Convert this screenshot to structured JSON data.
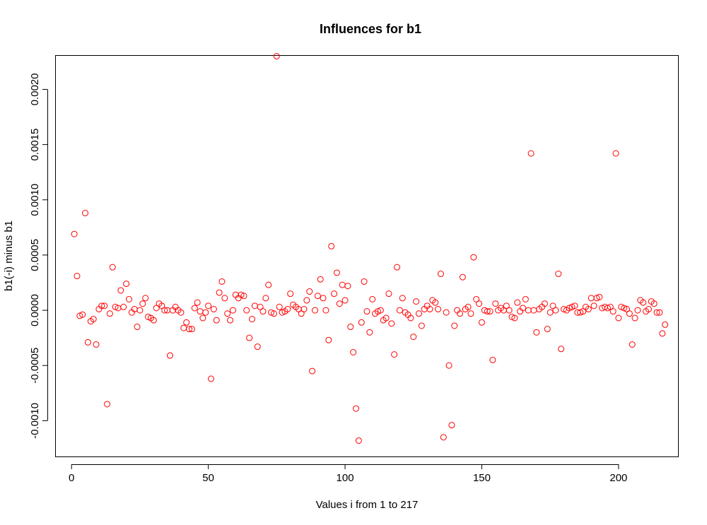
{
  "chart_data": {
    "type": "scatter",
    "title": "Influences for b1",
    "xlabel": "Values i from 1 to 217",
    "ylabel": "b1(-i) minus b1",
    "xlim": [
      -6,
      222
    ],
    "ylim": [
      -0.00133,
      0.00231
    ],
    "xticks": [
      0,
      50,
      100,
      150,
      200
    ],
    "xtick_labels": [
      "0",
      "50",
      "100",
      "150",
      "200"
    ],
    "yticks": [
      -0.001,
      -0.0005,
      0.0,
      0.0005,
      0.001,
      0.0015,
      0.002
    ],
    "ytick_labels": [
      "-0.0010",
      "-0.0005",
      "0.0000",
      "0.0005",
      "0.0010",
      "0.0015",
      "0.0020"
    ],
    "grid": false,
    "marker": "open-circle",
    "colors": {
      "points": "#ff0000",
      "axes": "#000000",
      "background": "#ffffff"
    },
    "x": [
      1,
      2,
      3,
      4,
      5,
      6,
      7,
      8,
      9,
      10,
      11,
      12,
      13,
      14,
      15,
      16,
      17,
      18,
      19,
      20,
      21,
      22,
      23,
      24,
      25,
      26,
      27,
      28,
      29,
      30,
      31,
      32,
      33,
      34,
      35,
      36,
      37,
      38,
      39,
      40,
      41,
      42,
      43,
      44,
      45,
      46,
      47,
      48,
      49,
      50,
      51,
      52,
      53,
      54,
      55,
      56,
      57,
      58,
      59,
      60,
      61,
      62,
      63,
      64,
      65,
      66,
      67,
      68,
      69,
      70,
      71,
      72,
      73,
      74,
      75,
      76,
      77,
      78,
      79,
      80,
      81,
      82,
      83,
      84,
      85,
      86,
      87,
      88,
      89,
      90,
      91,
      92,
      93,
      94,
      95,
      96,
      97,
      98,
      99,
      100,
      101,
      102,
      103,
      104,
      105,
      106,
      107,
      108,
      109,
      110,
      111,
      112,
      113,
      114,
      115,
      116,
      117,
      118,
      119,
      120,
      121,
      122,
      123,
      124,
      125,
      126,
      127,
      128,
      129,
      130,
      131,
      132,
      133,
      134,
      135,
      136,
      137,
      138,
      139,
      140,
      141,
      142,
      143,
      144,
      145,
      146,
      147,
      148,
      149,
      150,
      151,
      152,
      153,
      154,
      155,
      156,
      157,
      158,
      159,
      160,
      161,
      162,
      163,
      164,
      165,
      166,
      167,
      168,
      169,
      170,
      171,
      172,
      173,
      174,
      175,
      176,
      177,
      178,
      179,
      180,
      181,
      182,
      183,
      184,
      185,
      186,
      187,
      188,
      189,
      190,
      191,
      192,
      193,
      194,
      195,
      196,
      197,
      198,
      199,
      200,
      201,
      202,
      203,
      204,
      205,
      206,
      207,
      208,
      209,
      210,
      211,
      212,
      213,
      214,
      215,
      216,
      217
    ],
    "y": [
      0.00069,
      0.00031,
      -5e-05,
      -4e-05,
      0.00088,
      -0.00029,
      -0.0001,
      -8e-05,
      -0.00031,
      1e-05,
      4e-05,
      4e-05,
      -0.00085,
      -3e-05,
      0.00039,
      3e-05,
      2e-05,
      0.00018,
      3e-05,
      0.00024,
      0.0001,
      -2e-05,
      1e-05,
      -0.00015,
      0.0,
      6e-05,
      0.00011,
      -6e-05,
      -7e-05,
      -9e-05,
      2e-05,
      6e-05,
      4e-05,
      0.0,
      0.0,
      -0.00041,
      0.0,
      3e-05,
      0.0,
      -2e-05,
      -0.00016,
      -0.00011,
      -0.00017,
      -0.00017,
      2e-05,
      7e-05,
      -1e-05,
      -7e-05,
      -2e-05,
      4e-05,
      -0.00062,
      1e-05,
      -9e-05,
      0.00016,
      0.00026,
      0.00011,
      -3e-05,
      -9e-05,
      0.0,
      0.00014,
      0.00011,
      0.00014,
      0.00013,
      0.0,
      -0.00025,
      -8e-05,
      4e-05,
      -0.00033,
      3e-05,
      -1e-05,
      0.00011,
      0.00023,
      -2e-05,
      -3e-05,
      0.0023,
      3e-05,
      -2e-05,
      -1e-05,
      1e-05,
      0.00015,
      5e-05,
      3e-05,
      1e-05,
      -3e-05,
      1e-05,
      9e-05,
      0.00017,
      -0.00055,
      0.0,
      0.00013,
      0.00028,
      0.00011,
      0.0,
      -0.00027,
      0.00058,
      0.00015,
      0.00034,
      6e-05,
      0.00023,
      9e-05,
      0.00022,
      -0.00015,
      -0.00038,
      -0.00089,
      -0.00118,
      -0.00011,
      0.00026,
      -1e-05,
      -0.0002,
      0.0001,
      -3e-05,
      -1e-05,
      0.0,
      -9e-05,
      -7e-05,
      0.00015,
      -0.00012,
      -0.0004,
      0.00039,
      0.0,
      0.00011,
      -2e-05,
      -4e-05,
      -7e-05,
      -0.00024,
      8e-05,
      -3e-05,
      -0.00014,
      1e-05,
      4e-05,
      1e-05,
      9e-05,
      7e-05,
      1e-05,
      0.00033,
      -0.00115,
      -2e-05,
      -0.0005,
      -0.00104,
      -0.00014,
      0.0,
      -3e-05,
      0.0003,
      1e-05,
      3e-05,
      -3e-05,
      0.00048,
      0.0001,
      6e-05,
      -0.00011,
      0.0,
      -1e-05,
      -1e-05,
      -0.00045,
      6e-05,
      0.0,
      2e-05,
      0.0,
      4e-05,
      0.0,
      -6e-05,
      -7e-05,
      7e-05,
      -1e-05,
      2e-05,
      0.0001,
      0.0,
      0.00142,
      0.0,
      -0.0002,
      1e-05,
      3e-05,
      6e-05,
      -0.00017,
      -2e-05,
      4e-05,
      0.0,
      0.00033,
      -0.00035,
      1e-05,
      0.0,
      2e-05,
      3e-05,
      4e-05,
      -2e-05,
      -2e-05,
      -1e-05,
      3e-05,
      1e-05,
      0.00011,
      4e-05,
      0.00011,
      0.00012,
      2e-05,
      3e-05,
      2e-05,
      3e-05,
      -1e-05,
      0.00142,
      -7e-05,
      3e-05,
      2e-05,
      1e-05,
      -3e-05,
      -0.00031,
      -7e-05,
      0.0,
      9e-05,
      7e-05,
      -1e-05,
      1e-05,
      8e-05,
      6e-05,
      -2e-05,
      -2e-05,
      -0.00021,
      -0.00013
    ]
  }
}
